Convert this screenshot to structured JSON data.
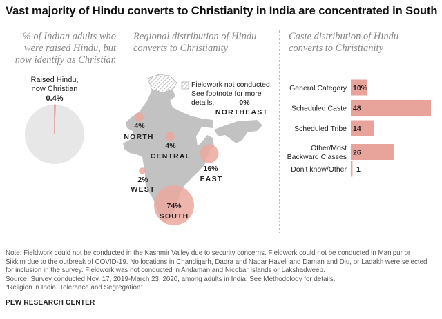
{
  "title": "Vast majority of Hindu converts to Christianity in India are concentrated in South",
  "panels": {
    "left_subtitle": [
      "% of Indian adults who",
      "were raised Hindu, but",
      "now identify as Christian"
    ],
    "mid_subtitle": [
      "Regional distribution of Hindu",
      "converts to Christianity"
    ],
    "right_subtitle": [
      "Caste distribution of Hindu",
      "converts to Christianity"
    ]
  },
  "colors": {
    "accent": "#e8a39b",
    "accent_bubble": "#eba89f",
    "pie_rest": "#e7e7e7",
    "map_land": "#c2c2c2",
    "text_dark": "#222222",
    "subtitle": "#888888"
  },
  "map_legend": [
    "Fieldwork not conducted.",
    "See footnote for more",
    "details."
  ],
  "chart_data": [
    {
      "type": "pie",
      "label_lines": [
        "Raised Hindu,",
        "now Christian"
      ],
      "slices": [
        {
          "label": "Raised Hindu, now Christian",
          "value": 0.4,
          "display": "0.4%"
        }
      ],
      "total": 100
    },
    {
      "type": "bubble-map",
      "regions": [
        {
          "name": "NORTH",
          "value": 4,
          "display": "4%"
        },
        {
          "name": "CENTRAL",
          "value": 4,
          "display": "4%"
        },
        {
          "name": "NORTHEAST",
          "value": 0,
          "display": "0%"
        },
        {
          "name": "EAST",
          "value": 16,
          "display": "16%"
        },
        {
          "name": "WEST",
          "value": 2,
          "display": "2%"
        },
        {
          "name": "SOUTH",
          "value": 74,
          "display": "74%"
        }
      ]
    },
    {
      "type": "bar",
      "orientation": "horizontal",
      "categories": [
        {
          "lines": [
            "General Category"
          ]
        },
        {
          "lines": [
            "Scheduled Caste"
          ]
        },
        {
          "lines": [
            "Scheduled Tribe"
          ]
        },
        {
          "lines": [
            "Other/Most",
            "Backward Classes"
          ]
        },
        {
          "lines": [
            "Don't know/Other"
          ]
        }
      ],
      "values": [
        10,
        48,
        14,
        26,
        1
      ],
      "value_labels": [
        "10%",
        "48",
        "14",
        "26",
        "1"
      ]
    }
  ],
  "notes": [
    "Note: Fieldwork could not be conducted in the Kashmir Valley due to security concerns. Fieldwork could not be conducted in Manipur or",
    "Sikkim due to the outbreak of COVID-19. No locations in Chandigarh, Dadra and Nagar Haveli and Daman and Diu, or Ladakh were selected",
    "for inclusion in the survey. Fieldwork was not conducted in Andaman and Nicobar Islands or Lakshadweep.",
    "Source: Survey conducted Nov. 17, 2019-March 23, 2020, among adults in India. See Methodology for details.",
    "“Religion in India: Tolerance and Segregation”"
  ],
  "brand": "PEW RESEARCH CENTER"
}
